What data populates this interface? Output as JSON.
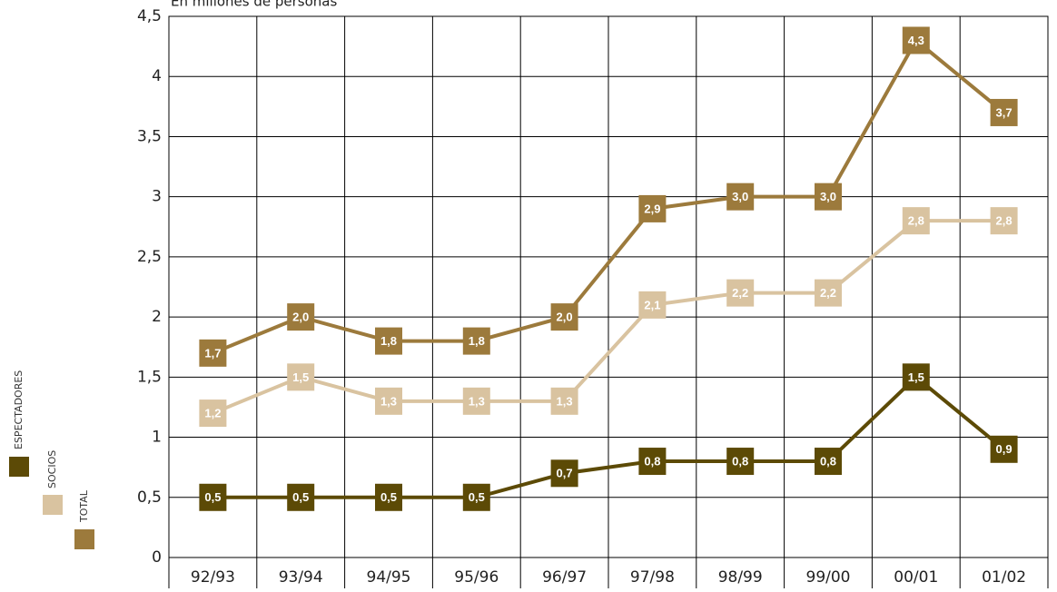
{
  "chart_data": {
    "type": "line",
    "subtitle": "En millones de personas",
    "categories": [
      "92/93",
      "93/94",
      "94/95",
      "95/96",
      "96/97",
      "97/98",
      "98/99",
      "99/00",
      "00/01",
      "01/02"
    ],
    "series": [
      {
        "name": "TOTAL",
        "color": "#9c7a3c",
        "values": [
          1.7,
          2.0,
          1.8,
          1.8,
          2.0,
          2.9,
          3.0,
          3.0,
          4.3,
          3.7
        ],
        "value_labels": [
          "1,7",
          "2,0",
          "1,8",
          "1,8",
          "2,0",
          "2,9",
          "3,0",
          "3,0",
          "4,3",
          "3,7"
        ]
      },
      {
        "name": "SOCIOS",
        "color": "#d9c3a0",
        "values": [
          1.2,
          1.5,
          1.3,
          1.3,
          1.3,
          2.1,
          2.2,
          2.2,
          2.8,
          2.8
        ],
        "value_labels": [
          "1,2",
          "1,5",
          "1,3",
          "1,3",
          "1,3",
          "2,1",
          "2,2",
          "2,2",
          "2,8",
          "2,8"
        ]
      },
      {
        "name": "ESPECTADORES",
        "color": "#5c4a06",
        "values": [
          0.5,
          0.5,
          0.5,
          0.5,
          0.7,
          0.8,
          0.8,
          0.8,
          1.5,
          0.9
        ],
        "value_labels": [
          "0,5",
          "0,5",
          "0,5",
          "0,5",
          "0,7",
          "0,8",
          "0,8",
          "0,8",
          "1,5",
          "0,9"
        ]
      }
    ],
    "ylim": [
      0,
      4.5
    ],
    "yticks": [
      0,
      {
        "value": 0.5,
        "label": "0,5"
      },
      1,
      {
        "value": 1.5,
        "label": "1,5"
      },
      2,
      {
        "value": 2.5,
        "label": "2,5"
      },
      3,
      {
        "value": 3.5,
        "label": "3,5"
      },
      4,
      {
        "value": 4.5,
        "label": "4,5"
      }
    ],
    "grid": true
  }
}
